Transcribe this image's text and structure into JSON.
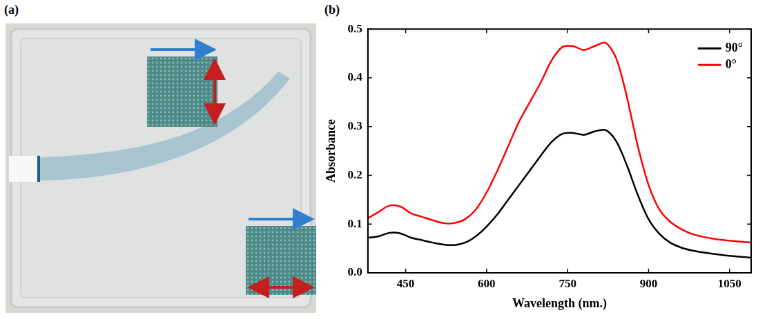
{
  "panel_labels": [
    "(a)",
    "(b)"
  ],
  "chart_data": {
    "type": "line",
    "x_label": "Wavelength (nm.)",
    "y_label": "Absorbance",
    "x": [
      380,
      400,
      420,
      440,
      460,
      480,
      500,
      520,
      540,
      560,
      580,
      600,
      620,
      640,
      660,
      680,
      700,
      720,
      740,
      760,
      780,
      800,
      820,
      840,
      860,
      880,
      900,
      920,
      940,
      960,
      980,
      1000,
      1020,
      1040,
      1060,
      1080,
      1090
    ],
    "series": [
      {
        "name": "90°",
        "color": "#000000",
        "values": [
          0.072,
          0.075,
          0.082,
          0.081,
          0.072,
          0.067,
          0.062,
          0.058,
          0.057,
          0.062,
          0.075,
          0.095,
          0.12,
          0.15,
          0.18,
          0.21,
          0.24,
          0.268,
          0.285,
          0.287,
          0.283,
          0.29,
          0.293,
          0.27,
          0.22,
          0.16,
          0.11,
          0.08,
          0.062,
          0.052,
          0.046,
          0.042,
          0.039,
          0.036,
          0.034,
          0.032,
          0.031
        ]
      },
      {
        "name": "0°",
        "color": "#ff0000",
        "values": [
          0.112,
          0.125,
          0.138,
          0.136,
          0.122,
          0.115,
          0.108,
          0.102,
          0.102,
          0.11,
          0.13,
          0.165,
          0.21,
          0.26,
          0.31,
          0.35,
          0.39,
          0.435,
          0.463,
          0.465,
          0.457,
          0.465,
          0.472,
          0.44,
          0.36,
          0.26,
          0.18,
          0.13,
          0.105,
          0.09,
          0.08,
          0.074,
          0.07,
          0.067,
          0.065,
          0.063,
          0.062
        ]
      }
    ],
    "xlim": [
      380,
      1090
    ],
    "xticks": [
      450,
      600,
      750,
      900,
      1050
    ],
    "ylim": [
      0,
      0.5
    ],
    "yticks": [
      {
        "value": 0,
        "label": "0.0"
      },
      0.1,
      0.2,
      0.3,
      0.4,
      0.5
    ],
    "grid": false,
    "legend": "upper right"
  }
}
